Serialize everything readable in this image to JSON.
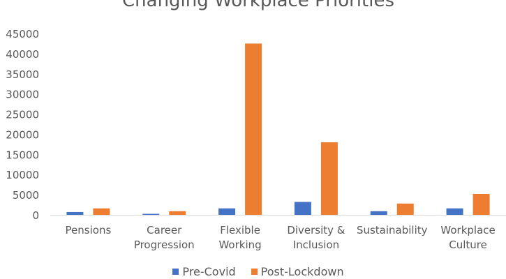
{
  "chart_data": {
    "type": "bar",
    "title": "Changing Workplace Priorities",
    "categories": [
      [
        "Pensions"
      ],
      [
        "Career",
        "Progression"
      ],
      [
        "Flexible",
        "Working"
      ],
      [
        "Diversity &",
        "Inclusion"
      ],
      [
        "Sustainability"
      ],
      [
        "Workplace",
        "Culture"
      ]
    ],
    "series": [
      {
        "name": "Pre-Covid",
        "color": "#4472C4",
        "values": [
          700,
          250,
          1600,
          3200,
          900,
          1600
        ]
      },
      {
        "name": "Post-Lockdown",
        "color": "#ED7D31",
        "values": [
          1600,
          900,
          42500,
          18000,
          2800,
          5200
        ]
      }
    ],
    "ylim": [
      0,
      45000
    ],
    "yticks": [
      0,
      5000,
      10000,
      15000,
      20000,
      25000,
      30000,
      35000,
      40000,
      45000
    ],
    "grid": false,
    "legend": "bottom"
  }
}
